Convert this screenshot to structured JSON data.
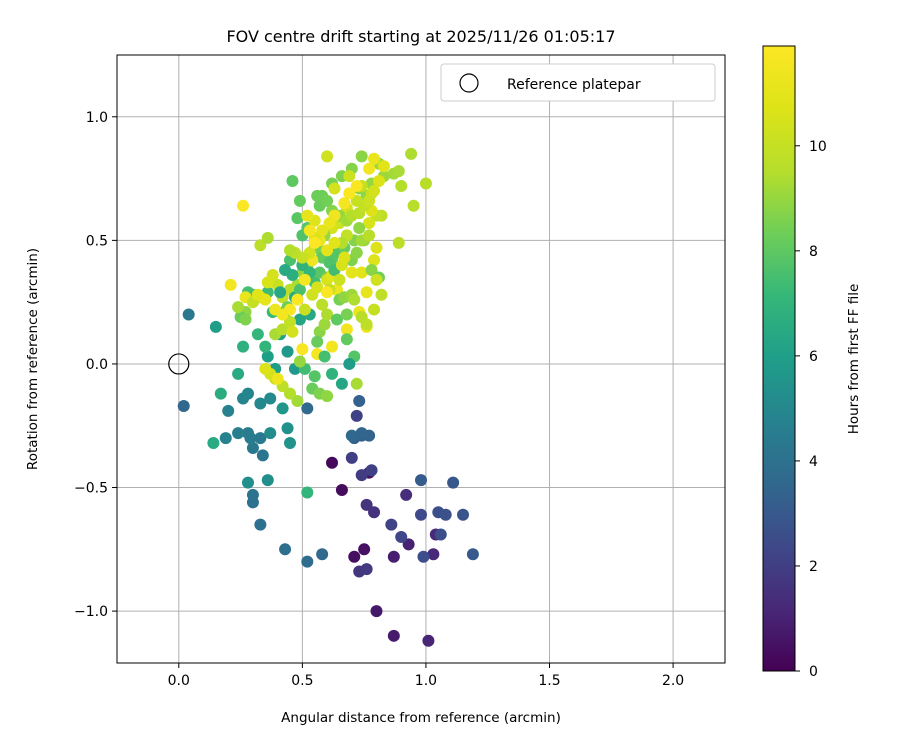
{
  "chart_data": {
    "type": "scatter",
    "title": "FOV centre drift starting at 2025/11/26 01:05:17",
    "xlabel": "Angular distance from reference (arcmin)",
    "ylabel": "Rotation from reference (arcmin)",
    "xlim": [
      -0.25,
      2.21
    ],
    "ylim": [
      -1.21,
      1.25
    ],
    "xticks": [
      0.0,
      0.5,
      1.0,
      1.5,
      2.0
    ],
    "xtick_labels": [
      "0.0",
      "0.5",
      "1.0",
      "1.5",
      "2.0"
    ],
    "yticks": [
      -1.0,
      -0.5,
      0.0,
      0.5,
      1.0
    ],
    "ytick_labels": [
      "−1.0",
      "−0.5",
      "0.0",
      "0.5",
      "1.0"
    ],
    "grid": true,
    "legend": {
      "position": "top-right",
      "label": "Reference platepar"
    },
    "reference_point": {
      "x": 0.0,
      "y": 0.0
    },
    "colorbar": {
      "label": "Hours from first FF file",
      "range": [
        0,
        11.9
      ],
      "ticks": [
        0,
        2,
        4,
        6,
        8,
        10
      ],
      "tick_labels": [
        "0",
        "2",
        "4",
        "6",
        "8",
        "10"
      ],
      "colormap": "viridis"
    },
    "points": [
      [
        0.62,
        -0.4,
        0.2
      ],
      [
        0.66,
        -0.51,
        0.3
      ],
      [
        0.71,
        -0.78,
        0.4
      ],
      [
        0.75,
        -0.75,
        0.5
      ],
      [
        0.77,
        -0.44,
        0.6
      ],
      [
        0.8,
        -1.0,
        0.7
      ],
      [
        0.87,
        -1.1,
        0.8
      ],
      [
        0.87,
        -0.78,
        0.9
      ],
      [
        0.93,
        -0.73,
        1.0
      ],
      [
        1.01,
        -1.12,
        1.1
      ],
      [
        1.03,
        -0.77,
        1.2
      ],
      [
        1.04,
        -0.69,
        1.3
      ],
      [
        0.92,
        -0.53,
        1.4
      ],
      [
        0.79,
        -0.6,
        1.5
      ],
      [
        0.76,
        -0.57,
        1.6
      ],
      [
        0.73,
        -0.84,
        1.7
      ],
      [
        0.76,
        -0.83,
        1.8
      ],
      [
        0.74,
        -0.45,
        1.9
      ],
      [
        0.7,
        -0.38,
        2.0
      ],
      [
        0.78,
        -0.43,
        2.1
      ],
      [
        0.72,
        -0.21,
        2.1
      ],
      [
        0.86,
        -0.65,
        2.2
      ],
      [
        0.9,
        -0.7,
        2.3
      ],
      [
        0.98,
        -0.61,
        2.4
      ],
      [
        0.99,
        -0.78,
        2.5
      ],
      [
        1.05,
        -0.6,
        2.6
      ],
      [
        1.06,
        -0.69,
        2.6
      ],
      [
        1.08,
        -0.61,
        2.7
      ],
      [
        1.15,
        -0.61,
        2.8
      ],
      [
        1.11,
        -0.48,
        2.9
      ],
      [
        1.19,
        -0.77,
        3.0
      ],
      [
        0.98,
        -0.47,
        3.1
      ],
      [
        0.74,
        -0.29,
        3.2
      ],
      [
        0.73,
        -0.15,
        3.3
      ],
      [
        0.71,
        -0.3,
        3.3
      ],
      [
        0.77,
        -0.29,
        3.4
      ],
      [
        0.74,
        -0.28,
        3.5
      ],
      [
        0.7,
        -0.29,
        3.6
      ],
      [
        0.52,
        -0.18,
        3.7
      ],
      [
        0.58,
        -0.77,
        3.7
      ],
      [
        0.52,
        -0.8,
        3.8
      ],
      [
        0.43,
        -0.75,
        3.9
      ],
      [
        0.33,
        -0.65,
        4.0
      ],
      [
        0.3,
        -0.56,
        4.0
      ],
      [
        0.3,
        -0.53,
        4.1
      ],
      [
        0.34,
        -0.37,
        4.2
      ],
      [
        0.3,
        -0.34,
        4.3
      ],
      [
        0.33,
        -0.3,
        4.4
      ],
      [
        0.29,
        -0.3,
        4.5
      ],
      [
        0.28,
        -0.28,
        4.5
      ],
      [
        0.24,
        -0.28,
        4.6
      ],
      [
        0.19,
        -0.3,
        4.7
      ],
      [
        0.2,
        -0.19,
        4.7
      ],
      [
        0.26,
        -0.14,
        4.8
      ],
      [
        0.28,
        -0.12,
        4.9
      ],
      [
        0.33,
        -0.16,
        5.0
      ],
      [
        0.37,
        -0.14,
        5.1
      ],
      [
        0.37,
        -0.28,
        5.2
      ],
      [
        0.36,
        -0.47,
        5.3
      ],
      [
        0.28,
        -0.48,
        5.3
      ],
      [
        0.44,
        -0.26,
        5.4
      ],
      [
        0.45,
        -0.32,
        5.5
      ],
      [
        0.42,
        -0.18,
        5.6
      ],
      [
        0.44,
        0.05,
        5.7
      ],
      [
        0.47,
        -0.02,
        5.8
      ],
      [
        0.39,
        -0.02,
        5.9
      ],
      [
        0.36,
        0.03,
        6.0
      ],
      [
        0.41,
        0.12,
        6.1
      ],
      [
        0.43,
        0.21,
        6.2
      ],
      [
        0.49,
        0.18,
        6.3
      ],
      [
        0.53,
        0.2,
        6.4
      ],
      [
        0.24,
        -0.04,
        6.5
      ],
      [
        0.02,
        -0.17,
        3.6
      ],
      [
        0.04,
        0.2,
        4.3
      ],
      [
        0.15,
        0.15,
        5.9
      ],
      [
        0.14,
        -0.32,
        6.5
      ],
      [
        0.17,
        -0.12,
        6.6
      ],
      [
        0.26,
        0.07,
        6.8
      ],
      [
        0.35,
        0.07,
        7.0
      ],
      [
        0.32,
        0.12,
        7.1
      ],
      [
        0.38,
        0.21,
        7.2
      ],
      [
        0.36,
        0.29,
        7.3
      ],
      [
        0.3,
        0.28,
        7.4
      ],
      [
        0.28,
        0.29,
        7.5
      ],
      [
        0.45,
        0.42,
        7.6
      ],
      [
        0.5,
        0.52,
        7.7
      ],
      [
        0.52,
        0.55,
        7.8
      ],
      [
        0.48,
        0.59,
        7.9
      ],
      [
        0.46,
        0.74,
        8.0
      ],
      [
        0.49,
        0.66,
        8.1
      ],
      [
        0.57,
        0.64,
        8.2
      ],
      [
        0.58,
        0.68,
        8.3
      ],
      [
        0.56,
        0.68,
        8.3
      ],
      [
        0.6,
        0.66,
        8.4
      ],
      [
        0.62,
        0.73,
        8.5
      ],
      [
        0.66,
        0.76,
        8.6
      ],
      [
        0.7,
        0.79,
        8.7
      ],
      [
        0.74,
        0.84,
        8.8
      ],
      [
        0.73,
        0.71,
        8.8
      ],
      [
        0.76,
        0.68,
        8.9
      ],
      [
        0.78,
        0.73,
        9.0
      ],
      [
        0.83,
        0.76,
        9.1
      ],
      [
        0.81,
        0.81,
        9.1
      ],
      [
        0.87,
        0.77,
        9.2
      ],
      [
        0.89,
        0.78,
        9.3
      ],
      [
        0.94,
        0.85,
        9.4
      ],
      [
        0.9,
        0.72,
        9.5
      ],
      [
        1.0,
        0.73,
        9.6
      ],
      [
        0.95,
        0.64,
        9.6
      ],
      [
        0.89,
        0.49,
        9.7
      ],
      [
        0.82,
        0.6,
        9.8
      ],
      [
        0.8,
        0.6,
        9.9
      ],
      [
        0.78,
        0.69,
        10.0
      ],
      [
        0.74,
        0.72,
        10.0
      ],
      [
        0.72,
        0.66,
        10.1
      ],
      [
        0.69,
        0.76,
        10.2
      ],
      [
        0.6,
        0.84,
        10.3
      ],
      [
        0.63,
        0.71,
        10.4
      ],
      [
        0.68,
        0.63,
        10.5
      ],
      [
        0.77,
        0.57,
        10.6
      ],
      [
        0.78,
        0.62,
        10.7
      ],
      [
        0.8,
        0.47,
        10.7
      ],
      [
        0.79,
        0.42,
        10.8
      ],
      [
        0.74,
        0.37,
        10.9
      ],
      [
        0.7,
        0.37,
        11.0
      ],
      [
        0.76,
        0.29,
        11.1
      ],
      [
        0.73,
        0.21,
        11.2
      ],
      [
        0.76,
        0.15,
        11.3
      ],
      [
        0.68,
        0.14,
        11.4
      ],
      [
        0.62,
        0.07,
        11.5
      ],
      [
        0.56,
        0.04,
        11.6
      ],
      [
        0.5,
        0.06,
        11.7
      ],
      [
        0.55,
        0.33,
        7.5
      ],
      [
        0.57,
        0.37,
        7.9
      ],
      [
        0.6,
        0.35,
        8.3
      ],
      [
        0.62,
        0.42,
        8.0
      ],
      [
        0.64,
        0.45,
        7.8
      ],
      [
        0.67,
        0.47,
        8.2
      ],
      [
        0.7,
        0.42,
        8.6
      ],
      [
        0.71,
        0.5,
        8.7
      ],
      [
        0.73,
        0.55,
        8.9
      ],
      [
        0.75,
        0.5,
        9.0
      ],
      [
        0.78,
        0.38,
        8.8
      ],
      [
        0.81,
        0.35,
        8.4
      ],
      [
        0.58,
        0.44,
        8.6
      ],
      [
        0.52,
        0.4,
        8.9
      ],
      [
        0.5,
        0.37,
        9.0
      ],
      [
        0.48,
        0.32,
        9.3
      ],
      [
        0.45,
        0.3,
        9.6
      ],
      [
        0.42,
        0.27,
        9.9
      ],
      [
        0.4,
        0.32,
        10.1
      ],
      [
        0.38,
        0.36,
        10.4
      ],
      [
        0.36,
        0.33,
        10.6
      ],
      [
        0.33,
        0.27,
        10.8
      ],
      [
        0.3,
        0.25,
        11.0
      ],
      [
        0.27,
        0.27,
        11.2
      ],
      [
        0.27,
        0.21,
        8.9
      ],
      [
        0.25,
        0.19,
        8.2
      ],
      [
        0.27,
        0.18,
        8.6
      ],
      [
        0.39,
        0.12,
        9.3
      ],
      [
        0.42,
        0.14,
        9.6
      ],
      [
        0.45,
        0.17,
        9.9
      ],
      [
        0.51,
        0.22,
        10.1
      ],
      [
        0.54,
        0.28,
        10.3
      ],
      [
        0.56,
        0.31,
        10.5
      ],
      [
        0.6,
        0.34,
        10.6
      ],
      [
        0.62,
        0.36,
        10.9
      ],
      [
        0.64,
        0.3,
        11.3
      ],
      [
        0.51,
        -0.02,
        7.4
      ],
      [
        0.55,
        -0.05,
        7.8
      ],
      [
        0.54,
        -0.1,
        8.2
      ],
      [
        0.57,
        -0.12,
        8.6
      ],
      [
        0.6,
        -0.13,
        8.9
      ],
      [
        0.48,
        -0.15,
        9.2
      ],
      [
        0.45,
        -0.12,
        9.5
      ],
      [
        0.42,
        -0.09,
        9.8
      ],
      [
        0.39,
        -0.06,
        10.1
      ],
      [
        0.37,
        -0.04,
        10.4
      ],
      [
        0.35,
        -0.02,
        10.7
      ],
      [
        0.4,
        -0.06,
        11.3
      ],
      [
        0.72,
        0.45,
        8.8
      ],
      [
        0.74,
        0.5,
        9.2
      ],
      [
        0.77,
        0.52,
        9.6
      ],
      [
        0.68,
        0.52,
        9.9
      ],
      [
        0.65,
        0.57,
        10.2
      ],
      [
        0.62,
        0.55,
        10.5
      ],
      [
        0.55,
        0.58,
        10.8
      ],
      [
        0.52,
        0.6,
        11.1
      ],
      [
        0.24,
        0.23,
        9.3
      ],
      [
        0.21,
        0.32,
        11.5
      ],
      [
        0.26,
        0.64,
        11.8
      ],
      [
        0.3,
        0.25,
        10.0
      ],
      [
        0.33,
        0.48,
        9.7
      ],
      [
        0.36,
        0.51,
        9.4
      ],
      [
        0.71,
        0.03,
        7.8
      ],
      [
        0.72,
        -0.08,
        9.3
      ],
      [
        0.68,
        0.1,
        8.1
      ],
      [
        0.65,
        0.26,
        8.5
      ],
      [
        0.67,
        0.27,
        8.9
      ],
      [
        0.7,
        0.28,
        9.1
      ],
      [
        0.71,
        0.26,
        9.4
      ],
      [
        0.74,
        0.19,
        9.6
      ],
      [
        0.76,
        0.16,
        9.8
      ],
      [
        0.79,
        0.22,
        10.0
      ],
      [
        0.82,
        0.28,
        9.8
      ],
      [
        0.8,
        0.34,
        10.3
      ],
      [
        0.66,
        0.49,
        9.5
      ],
      [
        0.59,
        0.52,
        9.0
      ],
      [
        0.56,
        0.48,
        8.7
      ],
      [
        0.55,
        0.47,
        8.4
      ],
      [
        0.58,
        0.43,
        8.1
      ],
      [
        0.61,
        0.41,
        7.7
      ],
      [
        0.63,
        0.38,
        7.4
      ],
      [
        0.53,
        0.37,
        7.1
      ],
      [
        0.5,
        0.4,
        6.9
      ],
      [
        0.46,
        0.36,
        6.7
      ],
      [
        0.43,
        0.38,
        6.5
      ],
      [
        0.41,
        0.29,
        6.4
      ],
      [
        0.47,
        0.27,
        6.6
      ],
      [
        0.49,
        0.3,
        7.6
      ],
      [
        0.44,
        0.23,
        8.3
      ],
      [
        0.57,
        0.13,
        8.8
      ],
      [
        0.59,
        0.16,
        9.1
      ],
      [
        0.6,
        0.2,
        9.4
      ],
      [
        0.58,
        0.24,
        9.7
      ],
      [
        0.61,
        0.3,
        10.0
      ],
      [
        0.65,
        0.34,
        10.2
      ],
      [
        0.66,
        0.4,
        10.5
      ],
      [
        0.67,
        0.43,
        10.7
      ],
      [
        0.63,
        0.49,
        10.9
      ],
      [
        0.6,
        0.46,
        11.0
      ],
      [
        0.57,
        0.5,
        11.2
      ],
      [
        0.54,
        0.42,
        11.4
      ],
      [
        0.51,
        0.34,
        11.6
      ],
      [
        0.48,
        0.26,
        11.8
      ],
      [
        0.45,
        0.22,
        11.7
      ],
      [
        0.42,
        0.2,
        11.5
      ],
      [
        0.39,
        0.22,
        11.3
      ],
      [
        0.35,
        0.26,
        11.1
      ],
      [
        0.32,
        0.28,
        10.9
      ],
      [
        0.62,
        0.62,
        8.7
      ],
      [
        0.65,
        0.6,
        9.0
      ],
      [
        0.68,
        0.58,
        9.2
      ],
      [
        0.7,
        0.6,
        9.5
      ],
      [
        0.73,
        0.61,
        9.7
      ],
      [
        0.75,
        0.64,
        10.0
      ],
      [
        0.77,
        0.66,
        10.2
      ],
      [
        0.79,
        0.7,
        10.4
      ],
      [
        0.81,
        0.74,
        10.7
      ],
      [
        0.83,
        0.8,
        10.9
      ],
      [
        0.79,
        0.83,
        11.2
      ],
      [
        0.77,
        0.79,
        11.5
      ],
      [
        0.72,
        0.72,
        11.7
      ],
      [
        0.69,
        0.69,
        11.8
      ],
      [
        0.67,
        0.65,
        11.6
      ],
      [
        0.63,
        0.6,
        11.4
      ],
      [
        0.61,
        0.57,
        11.2
      ],
      [
        0.58,
        0.54,
        11.0
      ],
      [
        0.55,
        0.51,
        10.7
      ],
      [
        0.53,
        0.45,
        10.4
      ],
      [
        0.5,
        0.43,
        10.1
      ],
      [
        0.47,
        0.45,
        9.8
      ],
      [
        0.45,
        0.46,
        9.5
      ],
      [
        0.52,
        -0.52,
        7.0
      ],
      [
        0.55,
        0.49,
        11.9
      ],
      [
        0.53,
        0.54,
        11.6
      ],
      [
        0.6,
        0.29,
        11.8
      ],
      [
        0.46,
        0.13,
        10.4
      ],
      [
        0.49,
        0.01,
        9.0
      ],
      [
        0.56,
        0.09,
        8.2
      ],
      [
        0.59,
        0.03,
        7.5
      ],
      [
        0.62,
        -0.04,
        6.9
      ],
      [
        0.66,
        -0.08,
        6.3
      ],
      [
        0.69,
        0.0,
        5.9
      ],
      [
        0.64,
        0.18,
        8.0
      ],
      [
        0.68,
        0.2,
        8.5
      ]
    ]
  }
}
